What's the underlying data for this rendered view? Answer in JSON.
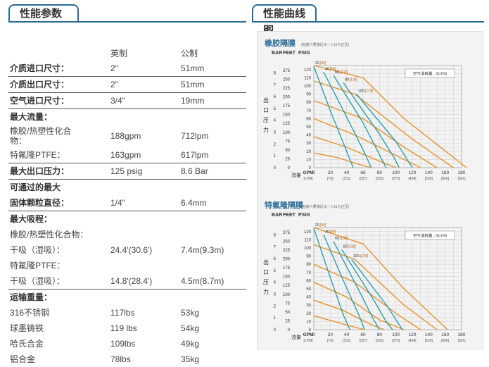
{
  "left_header": "性能参数",
  "right_header": "性能曲线图",
  "specs": {
    "col_imperial": "英制",
    "col_metric": "公制",
    "rows": [
      {
        "label": "介质进口尺寸：",
        "imp": "2\"",
        "met": "51mm"
      },
      {
        "label": "介质出口尺寸：",
        "imp": "2\"",
        "met": "51mm"
      },
      {
        "label": "空气进口尺寸：",
        "imp": "3/4\"",
        "met": "19mm"
      },
      {
        "label": "最大流量：",
        "imp": "",
        "met": ""
      },
      {
        "label": "橡胶/热塑性化合物：",
        "imp": "188gpm",
        "met": "712lpm"
      },
      {
        "label": "特氟隆PTFE：",
        "imp": "163gpm",
        "met": "617lpm"
      },
      {
        "label": "最大出口压力：",
        "imp": "125 psig",
        "met": "8.6 Bar"
      },
      {
        "label": "可通过的最大",
        "imp": "",
        "met": ""
      },
      {
        "label": "固体颗粒直径：",
        "imp": "1/4\"",
        "met": "6.4mm"
      },
      {
        "label": "最大吸程：",
        "imp": "",
        "met": ""
      },
      {
        "label": "橡胶/热塑性化合物：",
        "imp": "",
        "met": ""
      },
      {
        "label": "干吸（湿吸）：",
        "imp": "24.4'(30.6')",
        "met": "7.4m(9.3m)"
      },
      {
        "label": "特氟隆PTFE：",
        "imp": "",
        "met": ""
      },
      {
        "label": "干吸（湿吸）：",
        "imp": "14.8'(28.4')",
        "met": "4.5m(8.7m)"
      },
      {
        "label": "运输重量：",
        "imp": "",
        "met": ""
      },
      {
        "label": "316不锈钢",
        "imp": "117lbs",
        "met": "53kg"
      },
      {
        "label": "球墨铸铁",
        "imp": "119 lbs",
        "met": "54kg"
      },
      {
        "label": "哈氏合金",
        "imp": "109lbs",
        "met": "49kg"
      },
      {
        "label": "铝合金",
        "imp": "78lbs",
        "met": "35kg"
      }
    ]
  },
  "chart_data": [
    {
      "type": "line",
      "title": "橡胶隔膜",
      "note": "(粘度介质接近水一入口为正压)",
      "unit_labels": [
        "BAR",
        "FEET",
        "PSIG"
      ],
      "y_bar_ticks": [
        0,
        1,
        2,
        3,
        4,
        5,
        6,
        7,
        8
      ],
      "y_feet_ticks": [
        0,
        25,
        50,
        75,
        100,
        125,
        150,
        175,
        200,
        225,
        250,
        275
      ],
      "y_psig_ticks": [
        0,
        10,
        20,
        30,
        40,
        50,
        60,
        70,
        80,
        90,
        100,
        110,
        120
      ],
      "y_axis_label": "出口压力",
      "x_label_main": "流量",
      "x_ticks_gpm": [
        "GPM",
        0,
        20,
        40,
        60,
        80,
        100,
        120,
        140,
        160,
        180
      ],
      "x_ticks_lpm": [
        "[LPM]",
        "[76]",
        "[151]",
        "[227]",
        "[303]",
        "[379]",
        "[454]",
        "[530]",
        "[606]",
        "[681]"
      ],
      "air_legend": "空气消耗量 - SCFM",
      "air_series": [
        {
          "name": "20",
          "name_metric": "[34]",
          "points": [
            [
              0,
              124
            ],
            [
              20,
              70
            ],
            [
              40,
              20
            ],
            [
              48,
              0
            ]
          ]
        },
        {
          "name": "40",
          "name_metric": "[68]",
          "points": [
            [
              12,
              117
            ],
            [
              40,
              62
            ],
            [
              60,
              22
            ],
            [
              70,
              0
            ]
          ]
        },
        {
          "name": "60",
          "name_metric": "[102]",
          "points": [
            [
              24,
              113
            ],
            [
              60,
              55
            ],
            [
              80,
              16
            ],
            [
              88,
              0
            ]
          ]
        },
        {
          "name": "80",
          "name_metric": "[136]",
          "points": [
            [
              36,
              104
            ],
            [
              80,
              41
            ],
            [
              98,
              12
            ],
            [
              104,
              0
            ]
          ]
        },
        {
          "name": "100",
          "name_metric": "[170]",
          "points": [
            [
              52,
              90
            ],
            [
              100,
              32
            ],
            [
              120,
              0
            ]
          ]
        }
      ],
      "performance_curves": [
        [
          [
            0,
            125
          ],
          [
            60,
            110
          ],
          [
            110,
            60
          ],
          [
            186,
            0
          ]
        ],
        [
          [
            0,
            106
          ],
          [
            50,
            90
          ],
          [
            120,
            35
          ],
          [
            170,
            0
          ]
        ],
        [
          [
            0,
            82
          ],
          [
            60,
            60
          ],
          [
            110,
            25
          ],
          [
            150,
            0
          ]
        ],
        [
          [
            0,
            60
          ],
          [
            50,
            40
          ],
          [
            100,
            15
          ],
          [
            130,
            0
          ]
        ],
        [
          [
            0,
            38
          ],
          [
            40,
            25
          ],
          [
            80,
            8
          ],
          [
            100,
            0
          ]
        ],
        [
          [
            0,
            18
          ],
          [
            30,
            12
          ],
          [
            55,
            4
          ],
          [
            70,
            0
          ]
        ]
      ],
      "xlim": [
        0,
        180
      ],
      "ylim": [
        0,
        125
      ]
    },
    {
      "type": "line",
      "title": "特氟隆隔膜",
      "note": "(粘度介质接近水一入口为正压)",
      "unit_labels": [
        "BAR",
        "FEET",
        "PSIG"
      ],
      "y_bar_ticks": [
        0,
        1,
        2,
        3,
        4,
        5,
        6,
        7,
        8
      ],
      "y_feet_ticks": [
        0,
        25,
        50,
        75,
        100,
        125,
        150,
        175,
        200,
        225,
        250,
        275
      ],
      "y_psig_ticks": [
        0,
        10,
        20,
        30,
        40,
        50,
        60,
        70,
        80,
        90,
        100,
        110,
        120
      ],
      "y_axis_label": "出口压力",
      "x_label_main": "流量",
      "x_ticks_gpm": [
        "GPM",
        0,
        20,
        40,
        60,
        80,
        100,
        120,
        140,
        160,
        180
      ],
      "x_ticks_lpm": [
        "[LPM]",
        "[76]",
        "[151]",
        "[227]",
        "[303]",
        "[379]",
        "[454]",
        "[530]",
        "[606]",
        "[681]"
      ],
      "air_legend": "空气消耗量 - SCFM",
      "air_series": [
        {
          "name": "20",
          "name_metric": "[34]",
          "points": [
            [
              0,
              124
            ],
            [
              18,
              70
            ],
            [
              36,
              18
            ],
            [
              44,
              0
            ]
          ]
        },
        {
          "name": "40",
          "name_metric": "[68]",
          "points": [
            [
              12,
              116
            ],
            [
              36,
              60
            ],
            [
              54,
              20
            ],
            [
              62,
              0
            ]
          ]
        },
        {
          "name": "60",
          "name_metric": "[102]",
          "points": [
            [
              24,
              108
            ],
            [
              54,
              50
            ],
            [
              72,
              14
            ],
            [
              80,
              0
            ]
          ]
        },
        {
          "name": "80",
          "name_metric": "[136]",
          "points": [
            [
              34,
              98
            ],
            [
              72,
              38
            ],
            [
              88,
              10
            ],
            [
              96,
              0
            ]
          ]
        },
        {
          "name": "100",
          "name_metric": "[170]",
          "points": [
            [
              46,
              86
            ],
            [
              90,
              28
            ],
            [
              108,
              0
            ]
          ]
        }
      ],
      "performance_curves": [
        [
          [
            0,
            125
          ],
          [
            60,
            105
          ],
          [
            110,
            50
          ],
          [
            163,
            0
          ]
        ],
        [
          [
            0,
            104
          ],
          [
            50,
            86
          ],
          [
            110,
            30
          ],
          [
            150,
            0
          ]
        ],
        [
          [
            0,
            80
          ],
          [
            50,
            58
          ],
          [
            100,
            20
          ],
          [
            130,
            0
          ]
        ],
        [
          [
            0,
            58
          ],
          [
            40,
            40
          ],
          [
            80,
            12
          ],
          [
            110,
            0
          ]
        ],
        [
          [
            0,
            36
          ],
          [
            35,
            24
          ],
          [
            70,
            6
          ],
          [
            86,
            0
          ]
        ],
        [
          [
            0,
            17
          ],
          [
            25,
            10
          ],
          [
            50,
            3
          ],
          [
            62,
            0
          ]
        ]
      ],
      "xlim": [
        0,
        180
      ],
      "ylim": [
        0,
        125
      ]
    }
  ],
  "colors": {
    "accent": "#2a6b97",
    "orange": "#e8922b",
    "teal": "#2aa0b0",
    "grid": "#cfcfcf"
  }
}
